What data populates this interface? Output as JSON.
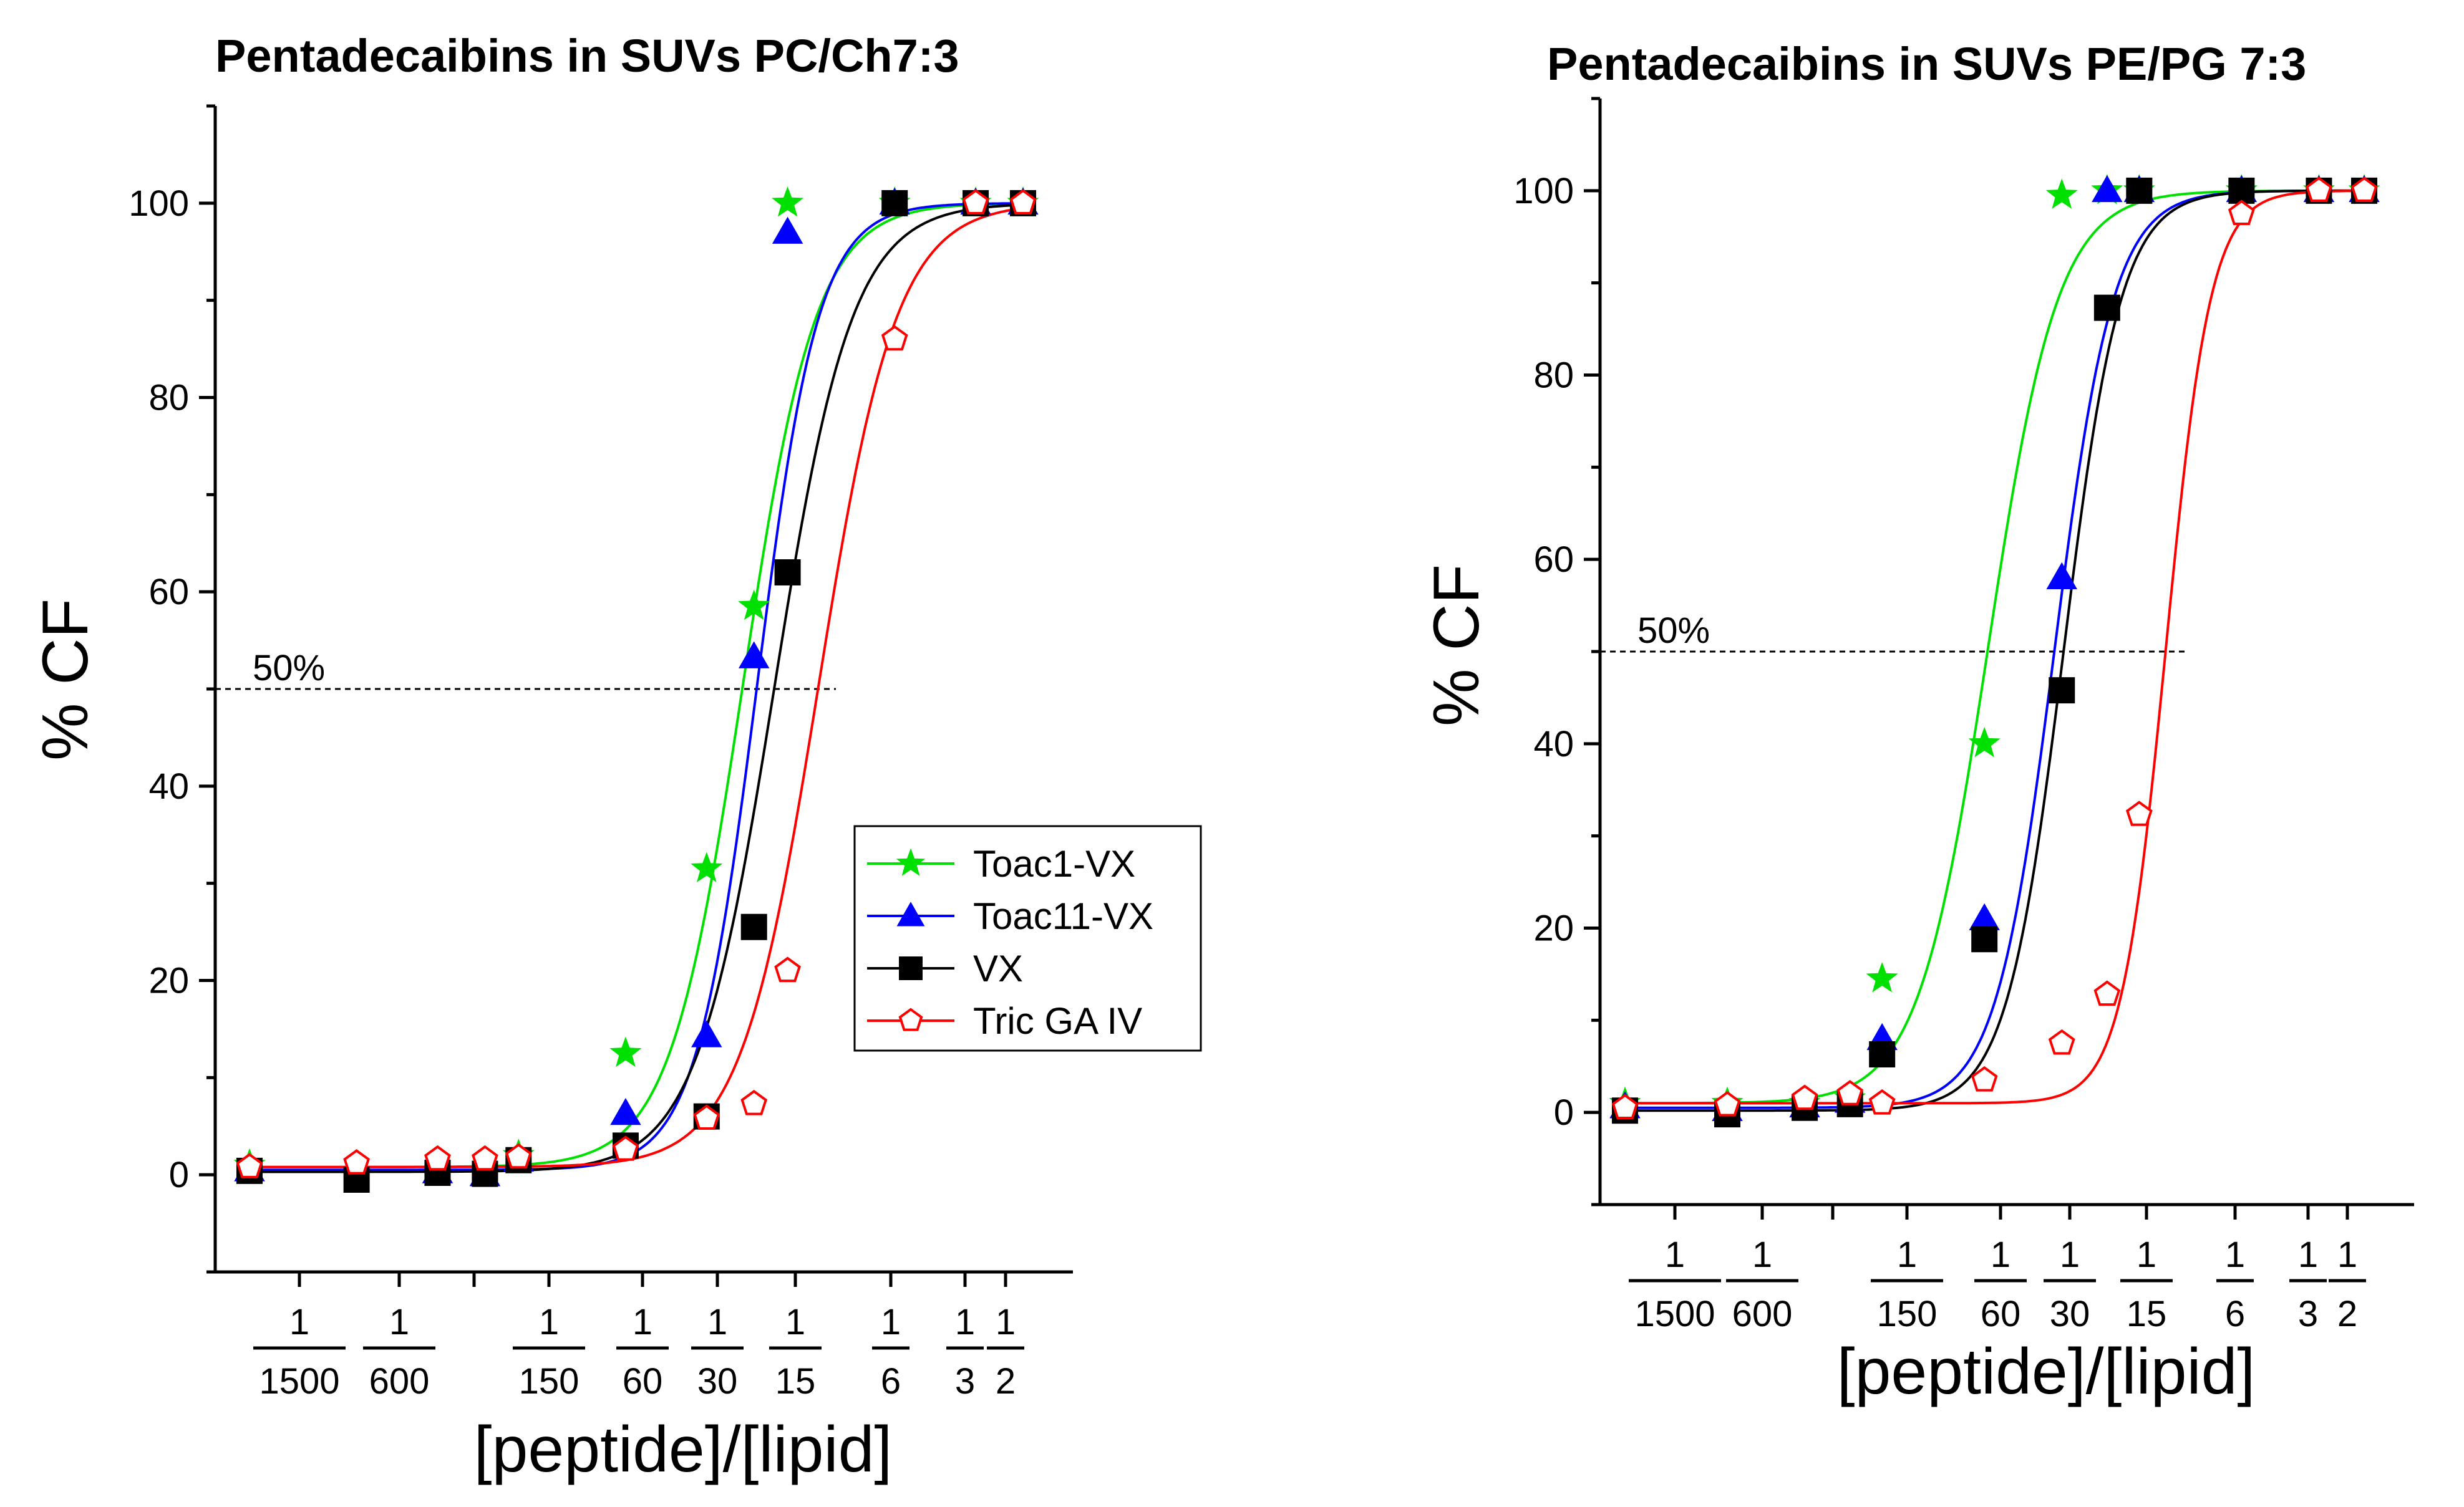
{
  "chart_data": [
    {
      "type": "scatter",
      "title": "Pentadecaibins in SUVs PC/Ch7:3",
      "xlabel": "[peptide]/[lipid]",
      "ylabel": "% CF",
      "ylim": [
        -10,
        110
      ],
      "yticks": [
        0,
        20,
        40,
        60,
        80,
        100
      ],
      "x_tick_labels": [
        {
          "num": "1",
          "den": "1500"
        },
        {
          "num": "1",
          "den": "600"
        },
        {
          "num": "1",
          "den": "150"
        },
        {
          "num": "1",
          "den": "60"
        },
        {
          "num": "1",
          "den": "30"
        },
        {
          "num": "1",
          "den": "15"
        },
        {
          "num": "1",
          "den": "6"
        },
        {
          "num": "1",
          "den": "3"
        },
        {
          "num": "1",
          "den": "2"
        }
      ],
      "reference_line": {
        "y": 50,
        "label": "50%"
      },
      "legend": {
        "position": "right",
        "show": true
      },
      "series": [
        {
          "name": "Toac1-VX",
          "color": "#00e000",
          "marker": "star",
          "fill": true,
          "x": [
            1500,
            150,
            60,
            30,
            20,
            15,
            6,
            3,
            2
          ],
          "y": [
            1,
            2,
            12.5,
            31.5,
            58.5,
            100,
            100,
            100,
            100
          ],
          "fit": {
            "x0": 22.0,
            "k": 3.2,
            "min": 0.8,
            "max": 100
          }
        },
        {
          "name": "Toac11-VX",
          "color": "#0000ff",
          "marker": "triangle",
          "fill": true,
          "x": [
            1500,
            300,
            200,
            150,
            60,
            30,
            20,
            15,
            6,
            3,
            2
          ],
          "y": [
            0.5,
            0.3,
            0.0,
            1.5,
            6.3,
            14.3,
            53.3,
            97,
            100,
            100,
            100
          ],
          "fit": {
            "x0": 19.5,
            "k": 3.8,
            "min": 0.5,
            "max": 100
          }
        },
        {
          "name": "VX",
          "color": "#000000",
          "marker": "square",
          "fill": true,
          "x": [
            1500,
            600,
            300,
            200,
            150,
            60,
            30,
            20,
            15,
            6,
            3,
            2
          ],
          "y": [
            0.4,
            -0.5,
            0.2,
            0.1,
            1.5,
            3,
            6,
            25.5,
            62,
            100,
            100,
            100
          ],
          "fit": {
            "x0": 16.8,
            "k": 3.0,
            "min": 0.3,
            "max": 100
          }
        },
        {
          "name": "Tric GA IV",
          "color": "#ff0000",
          "marker": "pentagon",
          "fill": false,
          "x": [
            1500,
            600,
            300,
            200,
            150,
            60,
            30,
            20,
            15,
            6,
            3,
            2
          ],
          "y": [
            0.8,
            1.2,
            1.6,
            1.6,
            1.8,
            2.6,
            5.8,
            7.3,
            21,
            86,
            100,
            100
          ],
          "fit": {
            "x0": 11.5,
            "k": 3.0,
            "min": 0.8,
            "max": 100
          }
        }
      ]
    },
    {
      "type": "scatter",
      "title": "Pentadecaibins in SUVs PE/PG 7:3",
      "xlabel": "[peptide]/[lipid]",
      "ylabel": "% CF",
      "ylim": [
        -10,
        110
      ],
      "yticks": [
        0,
        20,
        40,
        60,
        80,
        100
      ],
      "x_tick_labels": [
        {
          "num": "1",
          "den": "1500"
        },
        {
          "num": "1",
          "den": "600"
        },
        {
          "num": "1",
          "den": "150"
        },
        {
          "num": "1",
          "den": "60"
        },
        {
          "num": "1",
          "den": "30"
        },
        {
          "num": "1",
          "den": "15"
        },
        {
          "num": "1",
          "den": "6"
        },
        {
          "num": "1",
          "den": "3"
        },
        {
          "num": "1",
          "den": "2"
        }
      ],
      "reference_line": {
        "y": 50,
        "label": "50%"
      },
      "legend": {
        "show": false
      },
      "series": [
        {
          "name": "Toac1-VX",
          "color": "#00e000",
          "marker": "star",
          "fill": true,
          "x": [
            1500,
            600,
            300,
            200,
            150,
            60,
            30,
            20,
            15,
            6,
            3,
            2
          ],
          "y": [
            1,
            1,
            1,
            1.5,
            14.5,
            40,
            99.5,
            100,
            100,
            100,
            100,
            100
          ],
          "fit": {
            "x0": 58,
            "k": 3.2,
            "min": 1.0,
            "max": 100
          }
        },
        {
          "name": "Toac11-VX",
          "color": "#0000ff",
          "marker": "triangle",
          "fill": true,
          "x": [
            1500,
            600,
            300,
            200,
            150,
            60,
            30,
            20,
            15,
            6,
            3,
            2
          ],
          "y": [
            0.6,
            0.3,
            0.7,
            1.2,
            8,
            21,
            58,
            100,
            100,
            100,
            100,
            100
          ],
          "fit": {
            "x0": 32,
            "k": 3.8,
            "min": 0.5,
            "max": 100
          }
        },
        {
          "name": "VX",
          "color": "#000000",
          "marker": "square",
          "fill": true,
          "x": [
            1500,
            600,
            300,
            200,
            150,
            60,
            30,
            20,
            15,
            6,
            3,
            2
          ],
          "y": [
            0.2,
            -0.2,
            0.5,
            0.9,
            6.3,
            18.8,
            45.8,
            87.3,
            100,
            100,
            100,
            100
          ],
          "fit": {
            "x0": 29.5,
            "k": 3.9,
            "min": 0.2,
            "max": 100
          }
        },
        {
          "name": "Tric GA IV",
          "color": "#ff0000",
          "marker": "pentagon",
          "fill": false,
          "x": [
            1500,
            600,
            300,
            200,
            150,
            60,
            30,
            20,
            15,
            6,
            3,
            2
          ],
          "y": [
            0.5,
            0.8,
            1.5,
            2,
            1,
            3.5,
            7.5,
            12.8,
            32.3,
            97.5,
            100,
            100
          ],
          "fit": {
            "x0": 11.8,
            "k": 5.0,
            "min": 1.0,
            "max": 100
          }
        }
      ]
    }
  ]
}
